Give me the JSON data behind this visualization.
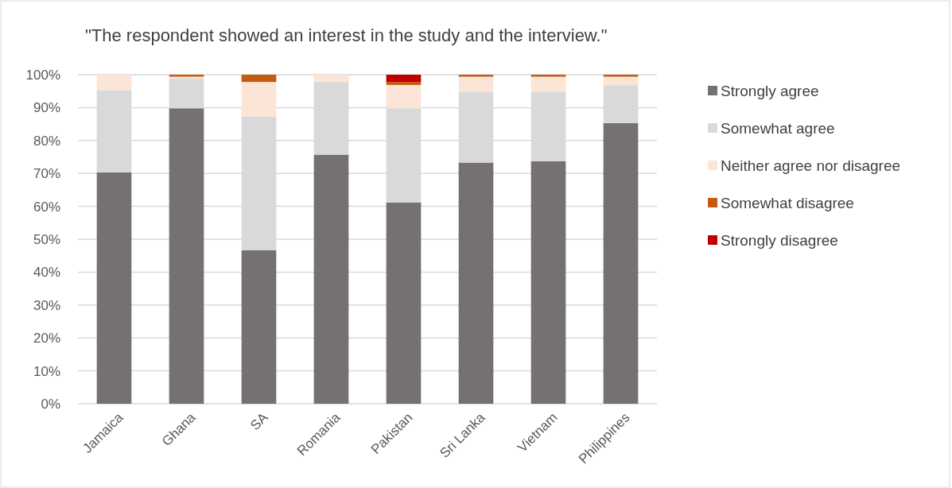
{
  "chart_data": {
    "type": "bar",
    "title": "\"The respondent showed an interest in the study and the interview.\"",
    "categories": [
      "Jamaica",
      "Ghana",
      "SA",
      "Romania",
      "Pakistan",
      "Sri Lanka",
      "Vietnam",
      "Philippines"
    ],
    "stacked": true,
    "series": [
      {
        "name": "Strongly agree",
        "color": "#767171",
        "values": [
          70.3,
          89.8,
          46.7,
          75.7,
          61.2,
          73.3,
          73.7,
          85.3
        ]
      },
      {
        "name": "Somewhat agree",
        "color": "#d9d9d9",
        "values": [
          25,
          9.1,
          40.6,
          22.1,
          28.6,
          21.5,
          21.1,
          11.5
        ]
      },
      {
        "name": "Neither agree nor disagree",
        "color": "#fbe5d6",
        "values": [
          4.7,
          0.5,
          10.5,
          2.2,
          7.1,
          4.6,
          4.6,
          2.6
        ]
      },
      {
        "name": "Somewhat disagree",
        "color": "#c55a11",
        "values": [
          0,
          0.6,
          2.2,
          0,
          0.9,
          0.6,
          0.6,
          0.6
        ]
      },
      {
        "name": "Strongly disagree",
        "color": "#c00000",
        "values": [
          0,
          0,
          0,
          0,
          2.2,
          0,
          0,
          0
        ]
      }
    ],
    "ylim": [
      0,
      100
    ],
    "yticks": [
      {
        "value": 0,
        "label": "0%"
      },
      {
        "value": 10,
        "label": "10%"
      },
      {
        "value": 20,
        "label": "20%"
      },
      {
        "value": 30,
        "label": "30%"
      },
      {
        "value": 40,
        "label": "40%"
      },
      {
        "value": 50,
        "label": "50%"
      },
      {
        "value": 60,
        "label": "60%"
      },
      {
        "value": 70,
        "label": "70%"
      },
      {
        "value": 80,
        "label": "80%"
      },
      {
        "value": 90,
        "label": "90%"
      },
      {
        "value": 100,
        "label": "100%"
      }
    ],
    "grid": "y",
    "legend": "right"
  }
}
